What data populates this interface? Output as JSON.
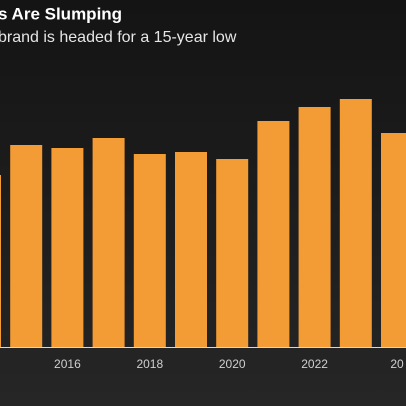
{
  "chart_data": {
    "type": "bar",
    "title": "s Are Slumping",
    "subtitle": "brand is headed for a 15-year low",
    "categories": [
      null,
      null,
      "2016",
      null,
      "2018",
      null,
      "2020",
      null,
      "2022",
      null,
      "20"
    ],
    "values": [
      172,
      202,
      199,
      209,
      193,
      195,
      188,
      226,
      240,
      248,
      214
    ],
    "color": "#f39c35",
    "ylim": [
      0,
      260
    ]
  }
}
